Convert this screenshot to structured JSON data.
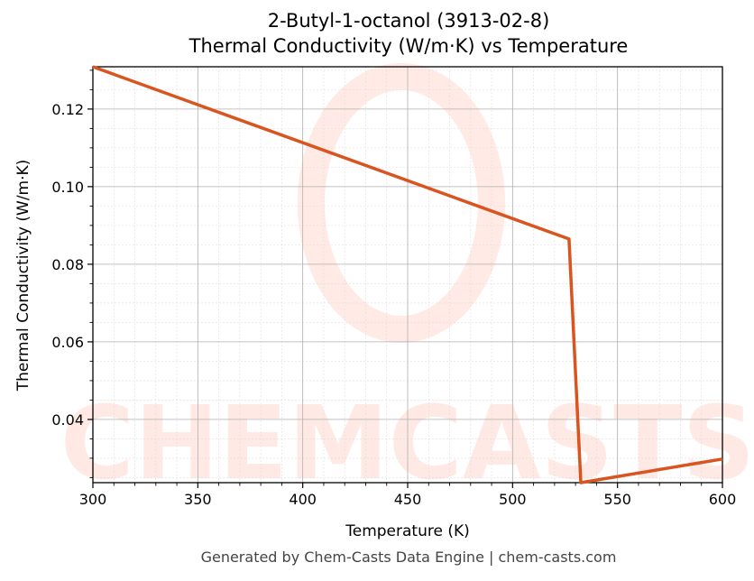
{
  "chart": {
    "title_line1": "2-Butyl-1-octanol (3913-02-8)",
    "title_line2": "Thermal Conductivity (W/m·K) vs Temperature",
    "xlabel": "Temperature (K)",
    "ylabel": "Thermal Conductivity (W/m·K)",
    "footer": "Generated by Chem-Casts Data Engine | chem-casts.com",
    "watermark": "CHEMCASTS",
    "line_color": "#d9541e"
  },
  "chart_data": {
    "type": "line",
    "title": "2-Butyl-1-octanol (3913-02-8) Thermal Conductivity (W/m·K) vs Temperature",
    "xlabel": "Temperature (K)",
    "ylabel": "Thermal Conductivity (W/m·K)",
    "xlim": [
      300,
      600
    ],
    "ylim": [
      0.0237,
      0.1309
    ],
    "x_ticks": [
      300,
      350,
      400,
      450,
      500,
      550,
      600
    ],
    "y_ticks": [
      "0.04",
      "0.06",
      "0.08",
      "0.10",
      "0.12"
    ],
    "grid": true,
    "legend": null,
    "series": [
      {
        "name": "Thermal Conductivity",
        "x": [
          300,
          526.9,
          532.5,
          600
        ],
        "y": [
          0.1309,
          0.0865,
          0.0237,
          0.0298
        ]
      }
    ]
  }
}
